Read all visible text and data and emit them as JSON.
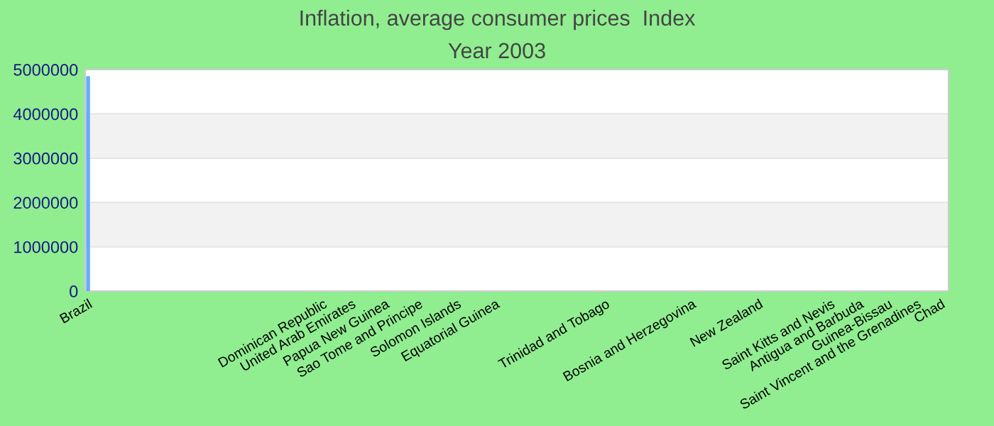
{
  "chart_data": {
    "type": "bar",
    "title": "Inflation, average consumer prices  Index",
    "subtitle": "Year 2003",
    "categories": [
      "Brazil",
      null,
      null,
      null,
      null,
      null,
      null,
      null,
      null,
      null,
      null,
      null,
      null,
      null,
      null,
      null,
      null,
      null,
      null,
      null,
      null,
      null,
      null,
      null,
      null,
      null,
      null,
      null,
      null,
      null,
      null,
      null,
      null,
      null,
      null,
      null,
      null,
      null,
      null,
      null,
      null,
      null,
      null,
      null,
      null,
      null,
      null,
      null,
      null,
      "Dominican Republic",
      null,
      null,
      null,
      null,
      null,
      "United Arab Emirates",
      null,
      null,
      null,
      null,
      null,
      null,
      "Papua New Guinea",
      null,
      null,
      null,
      null,
      null,
      null,
      "Sao Tome and Principe",
      null,
      null,
      null,
      null,
      null,
      null,
      null,
      "Solomon Islands",
      null,
      null,
      null,
      null,
      null,
      null,
      null,
      "Equatorial Guinea",
      null,
      null,
      null,
      null,
      null,
      null,
      null,
      null,
      null,
      null,
      null,
      null,
      null,
      null,
      null,
      null,
      null,
      null,
      null,
      null,
      null,
      null,
      "Trinidad and Tobago",
      null,
      null,
      null,
      null,
      null,
      null,
      null,
      null,
      null,
      null,
      null,
      null,
      null,
      null,
      null,
      null,
      null,
      "Bosnia and Herzegovina",
      null,
      null,
      null,
      null,
      null,
      null,
      null,
      null,
      null,
      null,
      null,
      null,
      null,
      "New Zealand",
      null,
      null,
      null,
      null,
      null,
      null,
      null,
      null,
      null,
      null,
      null,
      null,
      null,
      null,
      "Saint Kitts and Nevis",
      null,
      null,
      null,
      null,
      null,
      "Antigua and Barbuda",
      null,
      null,
      null,
      null,
      null,
      "Guinea-Bissau",
      null,
      null,
      null,
      null,
      null,
      "Saint Vincent and the Grenadines",
      null,
      null,
      null,
      null,
      "Chad",
      null
    ],
    "values": [
      4850000,
      0,
      0,
      0,
      0,
      0,
      0,
      0,
      0,
      0,
      0,
      0,
      0,
      0,
      0,
      0,
      0,
      0,
      0,
      0,
      0,
      0,
      0,
      0,
      0,
      0,
      0,
      0,
      0,
      0,
      0,
      0,
      0,
      0,
      0,
      0,
      0,
      0,
      0,
      0,
      0,
      0,
      0,
      0,
      0,
      0,
      0,
      0,
      0,
      0,
      0,
      0,
      0,
      0,
      0,
      0,
      0,
      0,
      0,
      0,
      0,
      0,
      0,
      0,
      0,
      0,
      0,
      0,
      0,
      0,
      0,
      0,
      0,
      0,
      0,
      0,
      0,
      0,
      0,
      0,
      0,
      0,
      0,
      0,
      0,
      0,
      0,
      0,
      0,
      0,
      0,
      0,
      0,
      0,
      0,
      0,
      0,
      0,
      0,
      0,
      0,
      0,
      0,
      0,
      0,
      0,
      0,
      0,
      0,
      0,
      0,
      0,
      0,
      0,
      0,
      0,
      0,
      0,
      0,
      0,
      0,
      0,
      0,
      0,
      0,
      0,
      0,
      0,
      0,
      0,
      0,
      0,
      0,
      0,
      0,
      0,
      0,
      0,
      0,
      0,
      0,
      0,
      0,
      0,
      0,
      0,
      0,
      0,
      0,
      0,
      0,
      0,
      0,
      0,
      0,
      0,
      0,
      0,
      0,
      0,
      0,
      0,
      0,
      0,
      0,
      0,
      0,
      0,
      0,
      0,
      0,
      0,
      0,
      0,
      0,
      0,
      0,
      0,
      0,
      0
    ],
    "color": "#66aaff",
    "ylim": [
      0,
      5000000
    ],
    "yticks": [
      0,
      1000000,
      2000000,
      3000000,
      4000000,
      5000000
    ],
    "grid": "y",
    "legend": false
  }
}
